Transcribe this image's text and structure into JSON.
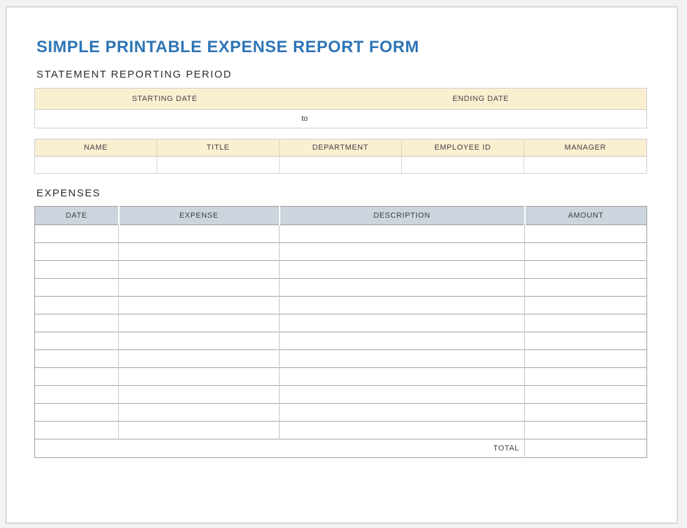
{
  "title": "SIMPLE PRINTABLE EXPENSE REPORT FORM",
  "colors": {
    "title_blue": "#2E75B6",
    "header_cream": "#FBEFD2",
    "header_blue_gray": "#CCD5DD",
    "border_gray": "#9c9c9c",
    "page_border": "#d8d8d8"
  },
  "reporting_period": {
    "heading": "STATEMENT REPORTING PERIOD",
    "columns": [
      "STARTING DATE",
      "ENDING DATE"
    ],
    "separator": "to",
    "starting_value": "",
    "ending_value": ""
  },
  "employee_info": {
    "columns": [
      "NAME",
      "TITLE",
      "DEPARTMENT",
      "EMPLOYEE ID",
      "MANAGER"
    ],
    "values": [
      "",
      "",
      "",
      "",
      ""
    ]
  },
  "expenses": {
    "heading": "EXPENSES",
    "columns": [
      "DATE",
      "EXPENSE",
      "DESCRIPTION",
      "AMOUNT"
    ],
    "rows": [
      [
        "",
        "",
        "",
        ""
      ],
      [
        "",
        "",
        "",
        ""
      ],
      [
        "",
        "",
        "",
        ""
      ],
      [
        "",
        "",
        "",
        ""
      ],
      [
        "",
        "",
        "",
        ""
      ],
      [
        "",
        "",
        "",
        ""
      ],
      [
        "",
        "",
        "",
        ""
      ],
      [
        "",
        "",
        "",
        ""
      ],
      [
        "",
        "",
        "",
        ""
      ],
      [
        "",
        "",
        "",
        ""
      ],
      [
        "",
        "",
        "",
        ""
      ],
      [
        "",
        "",
        "",
        ""
      ]
    ],
    "total_label": "TOTAL",
    "total_value": ""
  }
}
